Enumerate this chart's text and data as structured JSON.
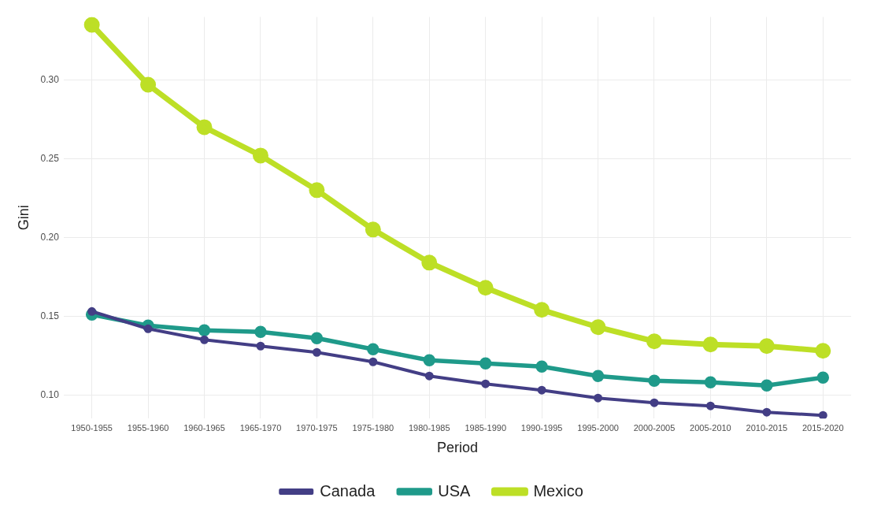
{
  "chart_data": {
    "type": "line",
    "xlabel": "Period",
    "ylabel": "Gini",
    "categories": [
      "1950-1955",
      "1955-1960",
      "1960-1965",
      "1965-1970",
      "1970-1975",
      "1975-1980",
      "1980-1985",
      "1985-1990",
      "1990-1995",
      "1995-2000",
      "2000-2005",
      "2005-2010",
      "2010-2015",
      "2015-2020"
    ],
    "series": [
      {
        "name": "Canada",
        "color": "#433e85",
        "values": [
          0.153,
          0.142,
          0.135,
          0.131,
          0.127,
          0.121,
          0.112,
          0.107,
          0.103,
          0.098,
          0.095,
          0.093,
          0.089,
          0.087
        ]
      },
      {
        "name": "USA",
        "color": "#1f9a8a",
        "values": [
          0.151,
          0.144,
          0.141,
          0.14,
          0.136,
          0.129,
          0.122,
          0.12,
          0.118,
          0.112,
          0.109,
          0.108,
          0.106,
          0.111
        ]
      },
      {
        "name": "Mexico",
        "color": "#bddf26",
        "values": [
          0.335,
          0.297,
          0.27,
          0.252,
          0.23,
          0.205,
          0.184,
          0.168,
          0.154,
          0.143,
          0.134,
          0.132,
          0.131,
          0.128
        ]
      }
    ],
    "ylim": [
      0.085,
      0.34
    ],
    "yticks": [
      {
        "value": 0.1,
        "label": "0.10"
      },
      {
        "value": 0.15,
        "label": "0.15"
      },
      {
        "value": 0.2,
        "label": "0.20"
      },
      {
        "value": 0.25,
        "label": "0.25"
      },
      {
        "value": 0.3,
        "label": "0.30"
      }
    ],
    "grid": true,
    "legend": "bottom",
    "marker": "circle",
    "line_style": "solid"
  }
}
